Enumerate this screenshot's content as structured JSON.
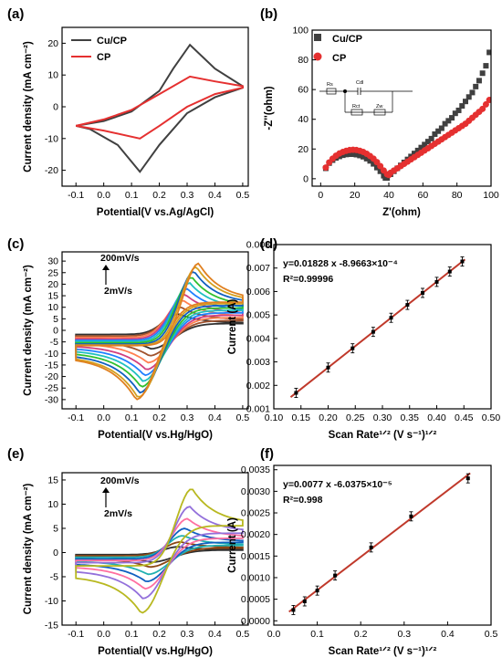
{
  "colors": {
    "dark": "#404040",
    "red": "#e53030",
    "fitline": "#c0392b"
  },
  "chart_data": [
    {
      "id": "a",
      "type": "line",
      "panel_label": "(a)",
      "xlabel": "Potential(V vs.Ag/AgCl)",
      "ylabel": "Current density (mA cm⁻²)",
      "xlim": [
        -0.15,
        0.52
      ],
      "ylim": [
        -25,
        25
      ],
      "xticks": [
        -0.1,
        0.0,
        0.1,
        0.2,
        0.3,
        0.4,
        0.5
      ],
      "xtick_labels": [
        "-0.1",
        "0.0",
        "0.1",
        "0.2",
        "0.3",
        "0.4",
        "0.5"
      ],
      "yticks": [
        -20,
        -10,
        0,
        10,
        20
      ],
      "ytick_labels": [
        "-20",
        "-10",
        "0",
        "10",
        "20"
      ],
      "legend": {
        "position": "top-left",
        "entries": [
          "Cu/CP",
          "CP"
        ]
      },
      "series": [
        {
          "name": "Cu/CP",
          "color": "#404040",
          "x": [
            -0.1,
            0.0,
            0.1,
            0.2,
            0.25,
            0.31,
            0.4,
            0.5,
            0.5,
            0.4,
            0.3,
            0.2,
            0.13,
            0.05,
            -0.05,
            -0.1
          ],
          "y": [
            -6,
            -4.5,
            -1.5,
            5,
            12,
            19.5,
            12,
            6.5,
            6,
            3,
            -2,
            -12,
            -20.5,
            -12,
            -7,
            -6
          ]
        },
        {
          "name": "CP",
          "color": "#e53030",
          "x": [
            -0.1,
            0.0,
            0.1,
            0.2,
            0.31,
            0.4,
            0.5,
            0.5,
            0.4,
            0.3,
            0.2,
            0.13,
            0.0,
            -0.1
          ],
          "y": [
            -6,
            -4,
            -1,
            4,
            9.5,
            8,
            6.5,
            6,
            4,
            0,
            -6,
            -10,
            -7.5,
            -6
          ]
        }
      ]
    },
    {
      "id": "b",
      "type": "scatter",
      "panel_label": "(b)",
      "xlabel": "Z'(ohm)",
      "ylabel": "-Z''(ohm)",
      "xlim": [
        -5,
        100
      ],
      "ylim": [
        -5,
        100
      ],
      "xticks": [
        0,
        20,
        40,
        60,
        80,
        100
      ],
      "xtick_labels": [
        "0",
        "20",
        "40",
        "60",
        "80",
        "100"
      ],
      "yticks": [
        0,
        20,
        40,
        60,
        80,
        100
      ],
      "ytick_labels": [
        "0",
        "20",
        "40",
        "60",
        "80",
        "100"
      ],
      "legend": {
        "position": "top-center",
        "entries": [
          "Cu/CP",
          "CP"
        ]
      },
      "circuit_labels": [
        "Rs",
        "Cdl",
        "Rct",
        "Zw"
      ],
      "series": [
        {
          "name": "Cu/CP",
          "color": "#404040",
          "marker": "square",
          "x": [
            3,
            5,
            7,
            9,
            11,
            13,
            15,
            17,
            19,
            21,
            23,
            25,
            27,
            29,
            31,
            33,
            35,
            37,
            38,
            39,
            41,
            43,
            45,
            47,
            49,
            51,
            53,
            55,
            57,
            59,
            61,
            63,
            65,
            67,
            69,
            71,
            73,
            75,
            77,
            79,
            81,
            83,
            85,
            87,
            89,
            91,
            93,
            95,
            97,
            99
          ],
          "y": [
            7,
            10.5,
            12.5,
            14,
            15,
            15.8,
            16.3,
            16.5,
            16.5,
            16.2,
            15.6,
            14.8,
            13.5,
            12,
            10,
            7.5,
            5,
            2,
            0.5,
            0.5,
            3,
            5,
            7,
            9,
            11,
            13,
            15,
            17,
            19,
            21,
            23,
            25,
            27,
            30,
            32,
            34,
            37,
            39,
            41,
            44,
            46,
            49,
            52,
            55,
            58,
            62,
            66,
            71,
            76,
            85
          ]
        },
        {
          "name": "CP",
          "color": "#e53030",
          "marker": "circle",
          "x": [
            3,
            5,
            7,
            9,
            11,
            13,
            15,
            17,
            19,
            21,
            23,
            25,
            27,
            29,
            31,
            33,
            35,
            37,
            39,
            40,
            41,
            43,
            45,
            47,
            49,
            51,
            53,
            55,
            57,
            59,
            61,
            63,
            65,
            67,
            69,
            71,
            73,
            75,
            77,
            79,
            81,
            83,
            85,
            87,
            89,
            91,
            93,
            95,
            97,
            99
          ],
          "y": [
            7.5,
            11,
            13.5,
            15.5,
            17,
            18,
            18.8,
            19.3,
            19.5,
            19.3,
            18.8,
            18,
            16.8,
            15.3,
            13.5,
            11.2,
            8.5,
            5.5,
            3,
            2.5,
            4,
            5.5,
            7,
            8.5,
            10,
            11.5,
            13,
            14.5,
            16,
            17.5,
            19,
            20.5,
            22,
            23.5,
            25,
            26.5,
            28,
            29.5,
            31,
            32.5,
            34,
            35.5,
            37,
            39,
            41,
            43,
            45,
            47,
            50,
            53
          ]
        }
      ]
    },
    {
      "id": "c",
      "type": "line",
      "panel_label": "(c)",
      "xlabel": "Potential(V vs.Hg/HgO)",
      "ylabel": "Current density (mA cm⁻²)",
      "xlim": [
        -0.15,
        0.52
      ],
      "ylim": [
        -34,
        34
      ],
      "xticks": [
        -0.1,
        0.0,
        0.1,
        0.2,
        0.3,
        0.4,
        0.5
      ],
      "xtick_labels": [
        "-0.1",
        "0.0",
        "0.1",
        "0.2",
        "0.3",
        "0.4",
        "0.5"
      ],
      "yticks": [
        -30,
        -25,
        -20,
        -15,
        -10,
        -5,
        0,
        5,
        10,
        15,
        20,
        25,
        30
      ],
      "ytick_labels": [
        "-30",
        "-25",
        "-20",
        "-15",
        "-10",
        "-5",
        "0",
        "5",
        "10",
        "15",
        "20",
        "25",
        "30"
      ],
      "annotations": {
        "top": "200mV/s",
        "bottom": "2mV/s"
      },
      "family": {
        "n": 10,
        "peak_ox": [
          7,
          10,
          13,
          15.5,
          18,
          20.5,
          23,
          25.5,
          27.5,
          29
        ],
        "peak_red": [
          -8,
          -11,
          -14,
          -17,
          -19.5,
          -22,
          -24.5,
          -27,
          -29,
          -30
        ],
        "colors": [
          "#303030",
          "#a0522d",
          "#ff7f50",
          "#d04080",
          "#2080ff",
          "#20c0c0",
          "#30c030",
          "#1060c0",
          "#d4a020",
          "#e08020"
        ]
      }
    },
    {
      "id": "d",
      "type": "scatter",
      "panel_label": "(d)",
      "xlabel": "Scan Rate¹ᐟ² (V s⁻¹)¹ᐟ²",
      "ylabel": "Current (A)",
      "xlim": [
        0.1,
        0.5
      ],
      "ylim": [
        0.001,
        0.008
      ],
      "xticks": [
        0.1,
        0.15,
        0.2,
        0.25,
        0.3,
        0.35,
        0.4,
        0.45,
        0.5
      ],
      "xtick_labels": [
        "0.10",
        "0.15",
        "0.20",
        "0.25",
        "0.30",
        "0.35",
        "0.40",
        "0.45",
        "0.50"
      ],
      "yticks": [
        0.001,
        0.002,
        0.003,
        0.004,
        0.005,
        0.006,
        0.007,
        0.008
      ],
      "ytick_labels": [
        "0.001",
        "0.002",
        "0.003",
        "0.004",
        "0.005",
        "0.006",
        "0.007",
        "0.008"
      ],
      "equation": "y=0.01828 x -8.9663×10⁻⁴",
      "r2": "R²=0.99996",
      "fit": {
        "slope": 0.01828,
        "intercept": -0.00089663
      },
      "x": [
        0.141,
        0.2,
        0.245,
        0.283,
        0.316,
        0.346,
        0.374,
        0.4,
        0.424,
        0.447
      ],
      "y": [
        0.00168,
        0.00276,
        0.00358,
        0.00428,
        0.00488,
        0.00543,
        0.00594,
        0.00641,
        0.00685,
        0.00728
      ]
    },
    {
      "id": "e",
      "type": "line",
      "panel_label": "(e)",
      "xlabel": "Potential(V vs.Hg/HgO)",
      "ylabel": "Current density (mA cm⁻²)",
      "xlim": [
        -0.15,
        0.52
      ],
      "ylim": [
        -15,
        16.5
      ],
      "xticks": [
        -0.1,
        0.0,
        0.1,
        0.2,
        0.3,
        0.4,
        0.5
      ],
      "xtick_labels": [
        "-0.1",
        "0.0",
        "0.1",
        "0.2",
        "0.3",
        "0.4",
        "0.5"
      ],
      "yticks": [
        -15,
        -10,
        -5,
        0,
        5,
        10,
        15
      ],
      "ytick_labels": [
        "-15",
        "-10",
        "-5",
        "0",
        "5",
        "10",
        "15"
      ],
      "annotations": {
        "top": "200mV/s",
        "bottom": "2mV/s"
      },
      "family": {
        "n": 7,
        "peak_ox": [
          1.2,
          2.2,
          3.5,
          5,
          7,
          9.5,
          13.2
        ],
        "peak_red": [
          -2,
          -3,
          -4.5,
          -6,
          -7.5,
          -9.5,
          -12.5
        ],
        "colors": [
          "#303030",
          "#8b4513",
          "#20b0b0",
          "#1060c0",
          "#ff6fa0",
          "#9370db",
          "#b8b820"
        ]
      }
    },
    {
      "id": "f",
      "type": "scatter",
      "panel_label": "(f)",
      "xlabel": "Scan Rate¹ᐟ² (V s⁻¹)¹ᐟ²",
      "ylabel": "Current (A)",
      "xlim": [
        0.0,
        0.5
      ],
      "ylim": [
        -0.0001,
        0.0036
      ],
      "xticks": [
        0.0,
        0.1,
        0.2,
        0.3,
        0.4,
        0.5
      ],
      "xtick_labels": [
        "0.0",
        "0.1",
        "0.2",
        "0.3",
        "0.4",
        "0.5"
      ],
      "yticks": [
        0.0,
        0.0005,
        0.001,
        0.0015,
        0.002,
        0.0025,
        0.003,
        0.0035
      ],
      "ytick_labels": [
        "0.0000",
        "0.0005",
        "0.0010",
        "0.0015",
        "0.0020",
        "0.0025",
        "0.0030",
        "0.0035"
      ],
      "equation": "y=0.0077 x -6.0375×10⁻⁵",
      "r2": "R²=0.998",
      "fit": {
        "slope": 0.0077,
        "intercept": -6.0375e-05
      },
      "x": [
        0.045,
        0.071,
        0.1,
        0.141,
        0.224,
        0.316,
        0.447
      ],
      "y": [
        0.00025,
        0.00045,
        0.0007,
        0.00105,
        0.0017,
        0.00242,
        0.0033
      ]
    }
  ]
}
